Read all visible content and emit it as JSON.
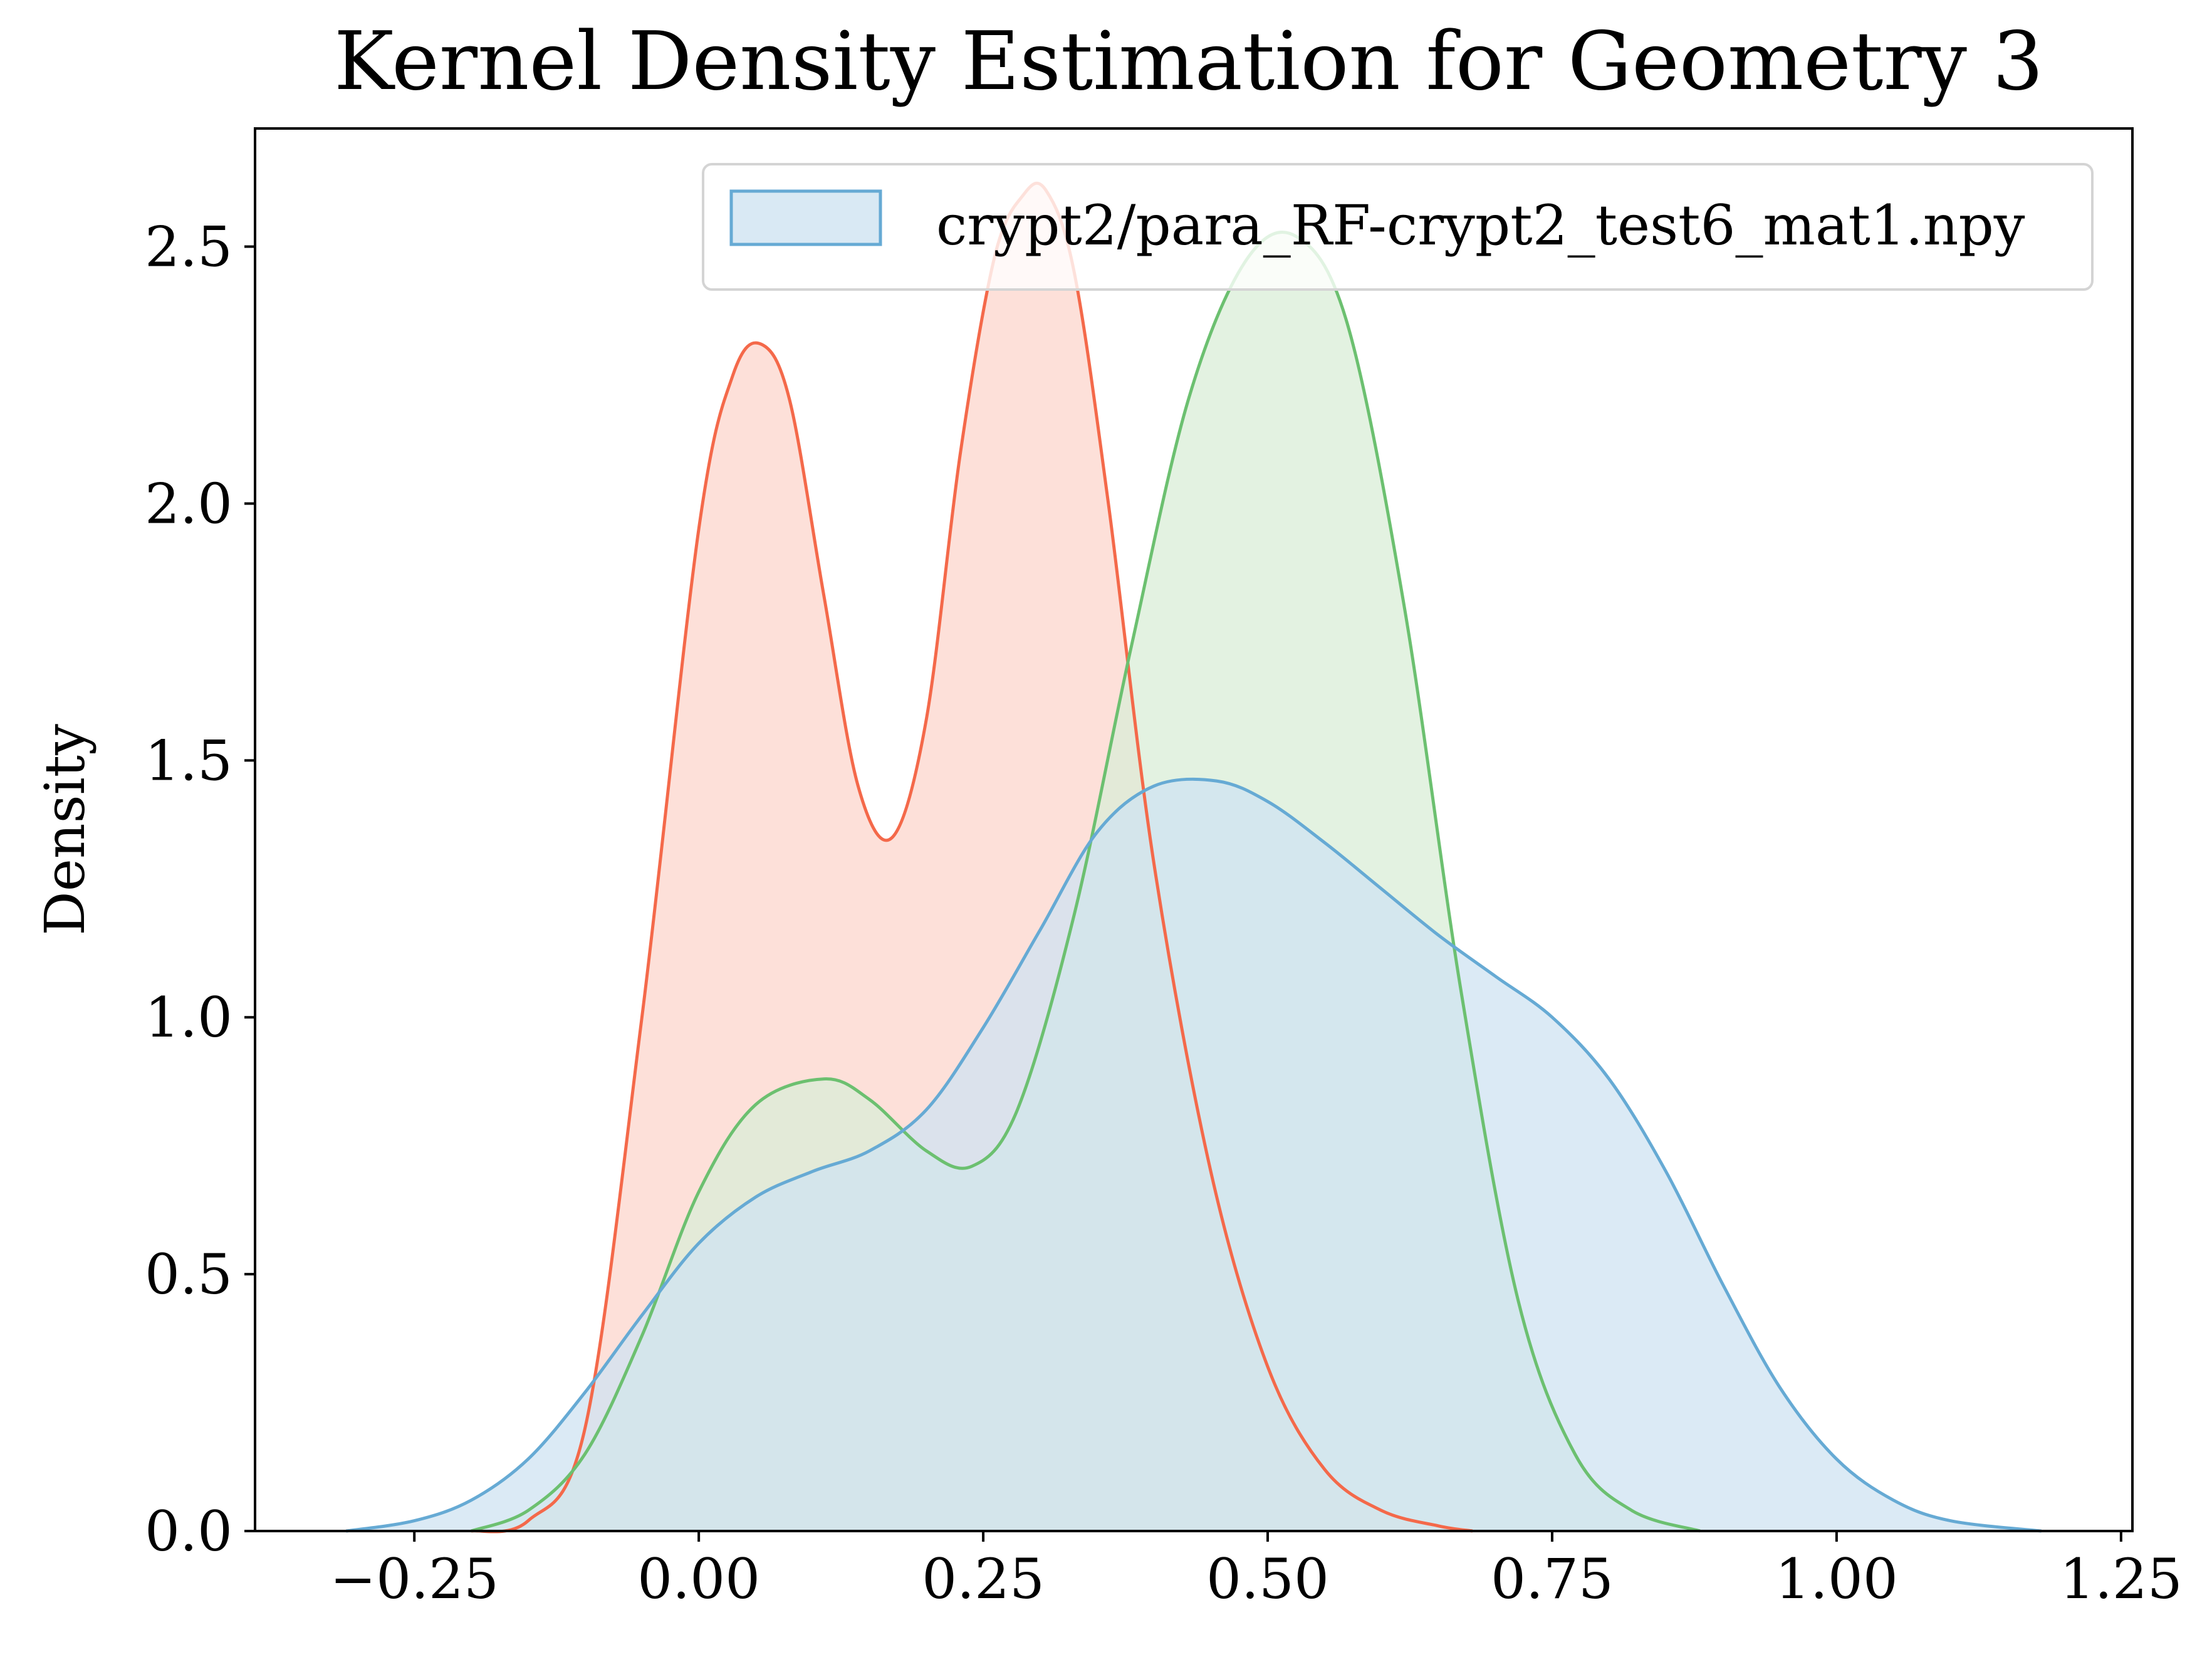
{
  "chart_data": {
    "type": "area",
    "title": "Kernel Density Estimation for Geometry 3",
    "xlabel": "",
    "ylabel": "Density",
    "xlim": [
      -0.39,
      1.26
    ],
    "ylim": [
      0.0,
      2.73
    ],
    "xticks": [
      -0.25,
      0.0,
      0.25,
      0.5,
      0.75,
      1.0,
      1.25
    ],
    "xtick_labels": [
      "−0.25",
      "0.00",
      "0.25",
      "0.50",
      "0.75",
      "1.00",
      "1.25"
    ],
    "yticks": [
      0.0,
      0.5,
      1.0,
      1.5,
      2.0,
      2.5
    ],
    "ytick_labels": [
      "0.0",
      "0.5",
      "1.0",
      "1.5",
      "2.0",
      "2.5"
    ],
    "grid": false,
    "legend": {
      "position": "top-right",
      "entries": [
        "crypt2/para_RF-crypt2_test6_mat1.npy"
      ]
    },
    "series": [
      {
        "color": "#f4694a",
        "fill": "#fcd6cc",
        "x": [
          -0.2,
          -0.15,
          -0.1,
          -0.05,
          0.0,
          0.03,
          0.055,
          0.08,
          0.11,
          0.14,
          0.17,
          0.2,
          0.23,
          0.26,
          0.285,
          0.305,
          0.33,
          0.36,
          0.4,
          0.45,
          0.5,
          0.55,
          0.6,
          0.65,
          0.68
        ],
        "y": [
          0.0,
          0.02,
          0.2,
          1.0,
          1.95,
          2.25,
          2.31,
          2.2,
          1.82,
          1.45,
          1.35,
          1.58,
          2.1,
          2.48,
          2.6,
          2.61,
          2.45,
          2.0,
          1.3,
          0.7,
          0.32,
          0.12,
          0.04,
          0.01,
          0.0
        ]
      },
      {
        "color": "#6cc070",
        "fill": "#d9eed7",
        "x": [
          -0.2,
          -0.15,
          -0.1,
          -0.05,
          0.0,
          0.05,
          0.11,
          0.15,
          0.2,
          0.24,
          0.28,
          0.33,
          0.38,
          0.43,
          0.48,
          0.525,
          0.57,
          0.62,
          0.67,
          0.72,
          0.77,
          0.82,
          0.88
        ],
        "y": [
          0.0,
          0.04,
          0.15,
          0.38,
          0.66,
          0.83,
          0.88,
          0.84,
          0.74,
          0.71,
          0.82,
          1.2,
          1.72,
          2.2,
          2.47,
          2.52,
          2.35,
          1.8,
          1.05,
          0.45,
          0.15,
          0.04,
          0.0
        ]
      },
      {
        "color": "#66aad4",
        "fill": "#cfe3f1",
        "x": [
          -0.31,
          -0.25,
          -0.2,
          -0.15,
          -0.1,
          -0.05,
          0.0,
          0.05,
          0.1,
          0.15,
          0.2,
          0.25,
          0.3,
          0.35,
          0.4,
          0.455,
          0.5,
          0.55,
          0.6,
          0.65,
          0.7,
          0.75,
          0.8,
          0.85,
          0.9,
          0.95,
          1.0,
          1.05,
          1.1,
          1.18
        ],
        "y": [
          0.0,
          0.02,
          0.06,
          0.14,
          0.27,
          0.42,
          0.56,
          0.65,
          0.7,
          0.74,
          0.82,
          0.98,
          1.17,
          1.36,
          1.45,
          1.46,
          1.42,
          1.34,
          1.25,
          1.16,
          1.08,
          1.0,
          0.88,
          0.7,
          0.48,
          0.28,
          0.14,
          0.06,
          0.02,
          0.0
        ]
      }
    ]
  }
}
